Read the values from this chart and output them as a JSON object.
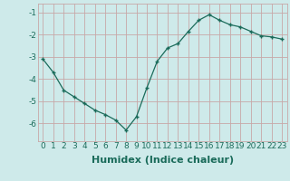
{
  "x": [
    0,
    1,
    2,
    3,
    4,
    5,
    6,
    7,
    8,
    9,
    10,
    11,
    12,
    13,
    14,
    15,
    16,
    17,
    18,
    19,
    20,
    21,
    22,
    23
  ],
  "y": [
    -3.1,
    -3.7,
    -4.5,
    -4.8,
    -5.1,
    -5.4,
    -5.6,
    -5.85,
    -6.3,
    -5.7,
    -4.4,
    -3.2,
    -2.6,
    -2.4,
    -1.85,
    -1.35,
    -1.1,
    -1.35,
    -1.55,
    -1.65,
    -1.85,
    -2.05,
    -2.1,
    -2.2
  ],
  "xlabel": "Humidex (Indice chaleur)",
  "xlim": [
    -0.5,
    23.5
  ],
  "ylim": [
    -6.8,
    -0.6
  ],
  "yticks": [
    -6,
    -5,
    -4,
    -3,
    -2,
    -1
  ],
  "xticks": [
    0,
    1,
    2,
    3,
    4,
    5,
    6,
    7,
    8,
    9,
    10,
    11,
    12,
    13,
    14,
    15,
    16,
    17,
    18,
    19,
    20,
    21,
    22,
    23
  ],
  "line_color": "#1a6b5a",
  "marker": "+",
  "bg_color": "#ceeaea",
  "grid_color": "#c8a8a8",
  "xlabel_fontsize": 8,
  "tick_fontsize": 6.5,
  "xlabel_color": "#1a6b5a",
  "tick_color": "#1a6b5a"
}
